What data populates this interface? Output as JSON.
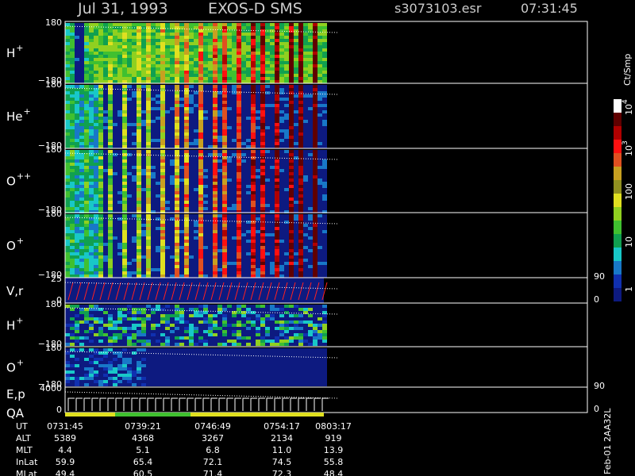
{
  "header": {
    "date": "Jul 31, 1993",
    "instrument": "EXOS-D SMS",
    "file": "s3073103.esr",
    "time": "07:31:45"
  },
  "panels": [
    {
      "label": "H",
      "sup": "+",
      "top": "180",
      "bottom": "−180"
    },
    {
      "label": "He",
      "sup": "+",
      "top": "180",
      "bottom": "−180"
    },
    {
      "label": "O",
      "sup": "++",
      "top": "180",
      "bottom": "−180"
    },
    {
      "label": "O",
      "sup": "+",
      "top": "180",
      "bottom": "−180"
    },
    {
      "label": "V,r",
      "top": "25",
      "bottom": "0",
      "right_top": "90",
      "right_bottom": "0"
    },
    {
      "label": "H",
      "sup": "+",
      "top": "180",
      "bottom": "−180"
    },
    {
      "label": "O",
      "sup": "+",
      "top": "180",
      "bottom": "−180"
    },
    {
      "label": "E,p",
      "label2": "QA",
      "top": "4000",
      "bottom": "0",
      "right_top": "90",
      "right_bottom": "0"
    }
  ],
  "colorbar": {
    "unit": "Ct/Smp",
    "labels": [
      {
        "text": "10",
        "sup": "4"
      },
      {
        "text": "10",
        "sup": "3"
      },
      {
        "text": "100"
      },
      {
        "text": "10"
      },
      {
        "text": "1"
      }
    ]
  },
  "table": {
    "rows": [
      [
        "UT",
        "0731:45",
        "0739:21",
        "0746:49",
        "0754:17",
        "0803:17"
      ],
      [
        "ALT",
        "5389",
        "4368",
        "3267",
        "2134",
        "919"
      ],
      [
        "MLT",
        "4.4",
        "5.1",
        "6.8",
        "11.0",
        "13.9"
      ],
      [
        "InLat",
        "59.9",
        "65.4",
        "72.1",
        "74.5",
        "55.8"
      ],
      [
        "MLat",
        "49.4",
        "60.5",
        "71.4",
        "72.3",
        "48.4"
      ]
    ]
  },
  "footer": "Feb-01 2AA32L"
}
